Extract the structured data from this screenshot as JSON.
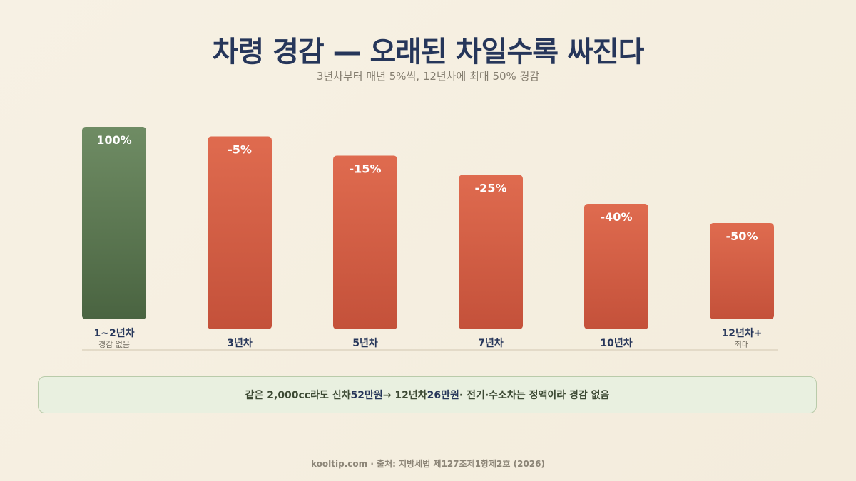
{
  "chart_data": {
    "type": "bar",
    "title": "차령 경감 — 오래된 차일수록 싸진다",
    "subtitle": "3년차부터 매년 5%씩, 12년차에 최대 50% 경감",
    "categories": [
      "1~2년차",
      "3년차",
      "5년차",
      "7년차",
      "10년차",
      "12년차+"
    ],
    "sublabels": [
      "경감 없음",
      "",
      "",
      "",
      "",
      "최대"
    ],
    "values": [
      100,
      95,
      85,
      75,
      60,
      50
    ],
    "value_labels": [
      "100%",
      "-5%",
      "-15%",
      "-25%",
      "-40%",
      "-50%"
    ],
    "ylim": [
      0,
      100
    ],
    "grid": false,
    "colors": [
      "#56744d",
      "#d05c42",
      "#d05c42",
      "#d05c42",
      "#d05c42",
      "#d05c42"
    ]
  },
  "note": {
    "part1": "같은 2,000cc라도 신차 ",
    "hl1": "52만원",
    "part2": " → 12년차 ",
    "hl2": "26만원",
    "part3": " · 전기·수소차는 정액이라 경감 없음"
  },
  "footer": "kooltip.com · 출처: 지방세법 제127조제1항제2호 (2026)"
}
